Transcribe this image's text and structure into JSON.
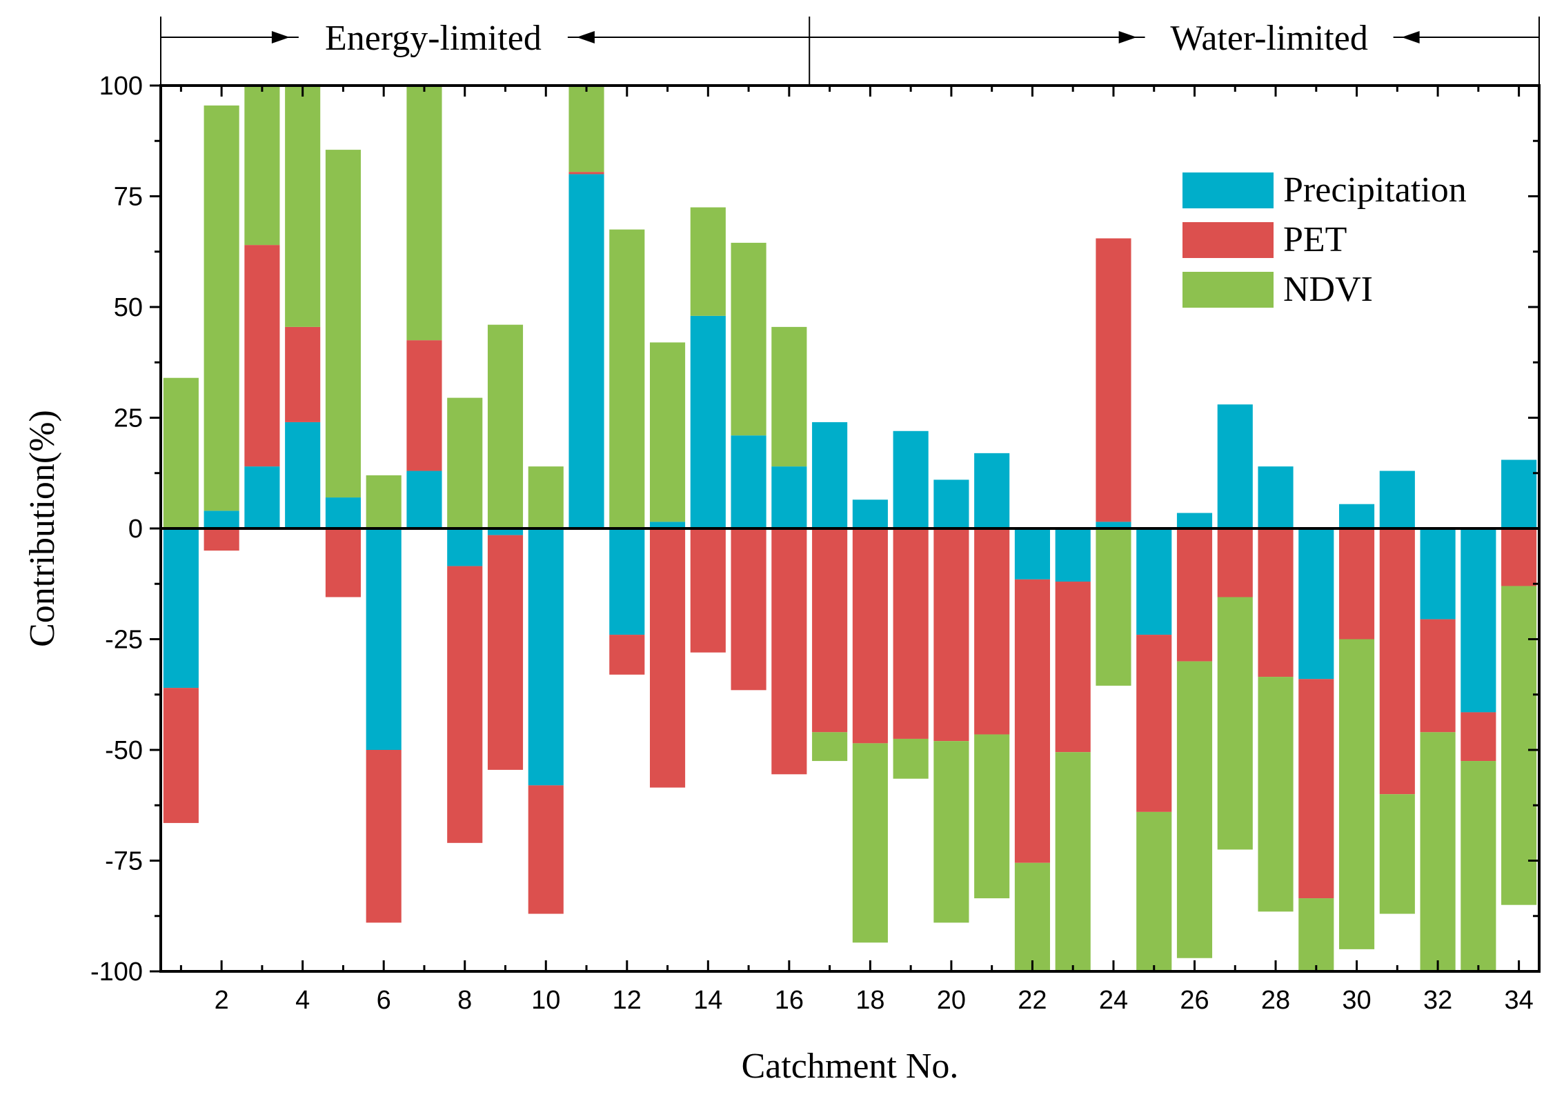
{
  "chart_data": {
    "type": "bar",
    "stacked": true,
    "title": "",
    "xlabel": "Catchment No.",
    "ylabel": "Contribution(%)",
    "ylim": [
      -100,
      100
    ],
    "xlim": [
      0.5,
      34.5
    ],
    "yticks": [
      -100,
      -75,
      -50,
      -25,
      0,
      25,
      50,
      75,
      100
    ],
    "ytick_labels": [
      "-100",
      "-75",
      "-50",
      "-25",
      "0",
      "25",
      "50",
      "75",
      "100"
    ],
    "xticks": [
      2,
      4,
      6,
      8,
      10,
      12,
      14,
      16,
      18,
      20,
      22,
      24,
      26,
      28,
      30,
      32,
      34
    ],
    "xtick_labels": [
      "2",
      "4",
      "6",
      "8",
      "10",
      "12",
      "14",
      "16",
      "18",
      "20",
      "22",
      "24",
      "26",
      "28",
      "30",
      "32",
      "34"
    ],
    "categories": [
      1,
      2,
      3,
      4,
      5,
      6,
      7,
      8,
      9,
      10,
      11,
      12,
      13,
      14,
      15,
      16,
      17,
      18,
      19,
      20,
      21,
      22,
      23,
      24,
      25,
      26,
      27,
      28,
      29,
      30,
      31,
      32,
      33,
      34
    ],
    "series": [
      {
        "name": "Precipitation",
        "color": "#00AECA",
        "values": [
          -36,
          4,
          14,
          24,
          7,
          -50,
          13,
          -8.5,
          -1.5,
          -58,
          80,
          -24,
          1.5,
          48,
          21,
          14,
          24,
          6.5,
          22,
          11,
          17,
          -11.5,
          -12,
          1.5,
          -24,
          3.5,
          28,
          14,
          -34,
          5.5,
          13,
          -20.5,
          -41.5,
          15.5
        ]
      },
      {
        "name": "PET",
        "color": "#DC504E",
        "values": [
          -30.5,
          -5,
          50,
          21.5,
          -15.5,
          -39,
          29.5,
          -62.5,
          -53,
          -29,
          0.5,
          -9,
          -58.5,
          -28,
          -36.5,
          -55.5,
          -46,
          -48.5,
          -47.5,
          -48,
          -46.5,
          -64,
          -38.5,
          64,
          -40,
          -30,
          -15.5,
          -33.5,
          -49.5,
          -25,
          -60,
          -25.5,
          -11,
          -13
        ]
      },
      {
        "name": "NDVI",
        "color": "#8DC14F",
        "values": [
          34,
          91.5,
          36,
          54.5,
          78.5,
          12,
          57.5,
          29.5,
          46,
          14,
          19.5,
          67.5,
          40.5,
          24.5,
          43.5,
          31.5,
          -6.5,
          -45,
          -9,
          -41,
          -37,
          -24.5,
          -49.5,
          -35.5,
          -36.5,
          -67,
          -57,
          -53,
          -17,
          -70,
          -27,
          -54,
          -48,
          -72
        ]
      }
    ],
    "legend": {
      "position": "top-right",
      "entries": [
        "Precipitation",
        "PET",
        "NDVI"
      ]
    },
    "annotations": {
      "left_region": "Energy-limited",
      "right_region": "Water-limited",
      "boundary_after_catchment": 16.5
    }
  }
}
